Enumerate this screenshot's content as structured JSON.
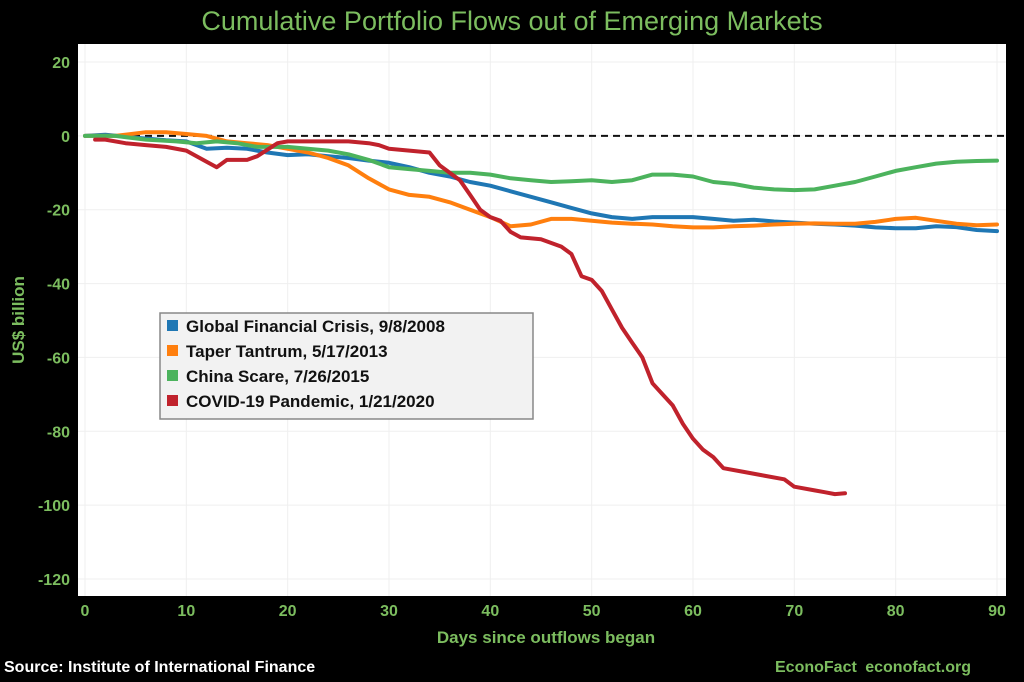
{
  "chart_data": {
    "type": "line",
    "title": "Cumulative Portfolio Flows out of Emerging Markets",
    "xlabel": "Days since outflows began",
    "ylabel": "US$ billion",
    "xlim": [
      0,
      90
    ],
    "ylim": [
      -120,
      20
    ],
    "x_ticks": [
      0,
      10,
      20,
      30,
      40,
      50,
      60,
      70,
      80,
      90
    ],
    "y_ticks": [
      20,
      0,
      -20,
      -40,
      -60,
      -80,
      -100,
      -120
    ],
    "grid": true,
    "reference_line_y": 0,
    "legend_position": "left-center",
    "series": [
      {
        "name": "Global Financial Crisis, 9/8/2008",
        "color": "#1f77b4",
        "points": [
          [
            0,
            0
          ],
          [
            2,
            0.3
          ],
          [
            5,
            -0.5
          ],
          [
            8,
            -1.2
          ],
          [
            10,
            -1.5
          ],
          [
            12,
            -3.5
          ],
          [
            14,
            -3.2
          ],
          [
            16,
            -3.5
          ],
          [
            18,
            -4.5
          ],
          [
            20,
            -5.2
          ],
          [
            22,
            -5
          ],
          [
            24,
            -5.5
          ],
          [
            26,
            -6
          ],
          [
            28,
            -6.7
          ],
          [
            30,
            -7.3
          ],
          [
            32,
            -8.5
          ],
          [
            34,
            -10
          ],
          [
            36,
            -11
          ],
          [
            38,
            -12.5
          ],
          [
            40,
            -13.5
          ],
          [
            42,
            -15
          ],
          [
            44,
            -16.5
          ],
          [
            46,
            -18
          ],
          [
            48,
            -19.5
          ],
          [
            50,
            -21
          ],
          [
            52,
            -22
          ],
          [
            54,
            -22.5
          ],
          [
            56,
            -22
          ],
          [
            58,
            -22
          ],
          [
            60,
            -22
          ],
          [
            62,
            -22.5
          ],
          [
            64,
            -23
          ],
          [
            66,
            -22.7
          ],
          [
            68,
            -23.2
          ],
          [
            70,
            -23.5
          ],
          [
            72,
            -23.8
          ],
          [
            74,
            -24
          ],
          [
            76,
            -24.3
          ],
          [
            78,
            -24.8
          ],
          [
            80,
            -25
          ],
          [
            82,
            -25
          ],
          [
            84,
            -24.5
          ],
          [
            86,
            -24.7
          ],
          [
            88,
            -25.5
          ],
          [
            90,
            -25.8
          ]
        ]
      },
      {
        "name": "Taper Tantrum, 5/17/2013",
        "color": "#ff7f0e",
        "points": [
          [
            0,
            0
          ],
          [
            3,
            0
          ],
          [
            6,
            1
          ],
          [
            8,
            1
          ],
          [
            10,
            0.5
          ],
          [
            12,
            0
          ],
          [
            14,
            -1.5
          ],
          [
            16,
            -2
          ],
          [
            18,
            -2.5
          ],
          [
            20,
            -3.5
          ],
          [
            22,
            -4.5
          ],
          [
            24,
            -6
          ],
          [
            26,
            -8
          ],
          [
            28,
            -11.5
          ],
          [
            30,
            -14.5
          ],
          [
            32,
            -16
          ],
          [
            34,
            -16.5
          ],
          [
            36,
            -18
          ],
          [
            38,
            -20
          ],
          [
            40,
            -22
          ],
          [
            42,
            -24.5
          ],
          [
            44,
            -24
          ],
          [
            46,
            -22.5
          ],
          [
            48,
            -22.5
          ],
          [
            50,
            -23
          ],
          [
            52,
            -23.5
          ],
          [
            54,
            -23.8
          ],
          [
            56,
            -24
          ],
          [
            58,
            -24.5
          ],
          [
            60,
            -24.8
          ],
          [
            62,
            -24.8
          ],
          [
            64,
            -24.5
          ],
          [
            66,
            -24.3
          ],
          [
            68,
            -24
          ],
          [
            70,
            -23.8
          ],
          [
            72,
            -23.7
          ],
          [
            74,
            -23.8
          ],
          [
            76,
            -23.8
          ],
          [
            78,
            -23.3
          ],
          [
            80,
            -22.5
          ],
          [
            82,
            -22.2
          ],
          [
            84,
            -23
          ],
          [
            86,
            -23.8
          ],
          [
            88,
            -24.2
          ],
          [
            90,
            -24
          ]
        ]
      },
      {
        "name": "China Scare, 7/26/2015",
        "color": "#4cb35d",
        "points": [
          [
            0,
            0
          ],
          [
            3,
            0
          ],
          [
            6,
            -1
          ],
          [
            9,
            -1.5
          ],
          [
            11,
            -2
          ],
          [
            13,
            -1.5
          ],
          [
            15,
            -2
          ],
          [
            17,
            -3
          ],
          [
            20,
            -3
          ],
          [
            22,
            -3.5
          ],
          [
            24,
            -4
          ],
          [
            26,
            -5
          ],
          [
            28,
            -6.5
          ],
          [
            30,
            -8.5
          ],
          [
            32,
            -9
          ],
          [
            34,
            -9.5
          ],
          [
            36,
            -10
          ],
          [
            38,
            -10
          ],
          [
            40,
            -10.5
          ],
          [
            42,
            -11.5
          ],
          [
            44,
            -12
          ],
          [
            46,
            -12.5
          ],
          [
            48,
            -12.3
          ],
          [
            50,
            -12
          ],
          [
            52,
            -12.5
          ],
          [
            54,
            -12
          ],
          [
            56,
            -10.5
          ],
          [
            58,
            -10.5
          ],
          [
            60,
            -11
          ],
          [
            62,
            -12.5
          ],
          [
            64,
            -13
          ],
          [
            66,
            -14
          ],
          [
            68,
            -14.5
          ],
          [
            70,
            -14.7
          ],
          [
            72,
            -14.5
          ],
          [
            74,
            -13.5
          ],
          [
            76,
            -12.5
          ],
          [
            78,
            -11
          ],
          [
            80,
            -9.5
          ],
          [
            82,
            -8.5
          ],
          [
            84,
            -7.5
          ],
          [
            86,
            -7
          ],
          [
            88,
            -6.8
          ],
          [
            90,
            -6.7
          ]
        ]
      },
      {
        "name": "COVID-19 Pandemic, 1/21/2020",
        "color": "#c0222c",
        "points": [
          [
            1,
            -1
          ],
          [
            2,
            -1
          ],
          [
            4,
            -2
          ],
          [
            6,
            -2.5
          ],
          [
            8,
            -3
          ],
          [
            10,
            -4
          ],
          [
            12,
            -7
          ],
          [
            13,
            -8.5
          ],
          [
            14,
            -6.5
          ],
          [
            16,
            -6.5
          ],
          [
            17,
            -5.5
          ],
          [
            19,
            -2
          ],
          [
            20,
            -1.5
          ],
          [
            22,
            -1.5
          ],
          [
            24,
            -1.5
          ],
          [
            26,
            -1.5
          ],
          [
            28,
            -2
          ],
          [
            29,
            -2.5
          ],
          [
            30,
            -3.5
          ],
          [
            32,
            -4
          ],
          [
            34,
            -4.5
          ],
          [
            35,
            -8
          ],
          [
            37,
            -12
          ],
          [
            38,
            -16
          ],
          [
            39,
            -20
          ],
          [
            40,
            -22
          ],
          [
            41,
            -23
          ],
          [
            42,
            -26
          ],
          [
            43,
            -27.5
          ],
          [
            45,
            -28
          ],
          [
            47,
            -30
          ],
          [
            48,
            -32
          ],
          [
            49,
            -38
          ],
          [
            50,
            -39
          ],
          [
            51,
            -42
          ],
          [
            52,
            -47
          ],
          [
            53,
            -52
          ],
          [
            54,
            -56
          ],
          [
            55,
            -60
          ],
          [
            56,
            -67
          ],
          [
            57,
            -70
          ],
          [
            58,
            -73
          ],
          [
            59,
            -78
          ],
          [
            60,
            -82
          ],
          [
            61,
            -85
          ],
          [
            62,
            -87
          ],
          [
            63,
            -90
          ],
          [
            65,
            -91
          ],
          [
            67,
            -92
          ],
          [
            69,
            -93
          ],
          [
            70,
            -95
          ],
          [
            72,
            -96
          ],
          [
            73,
            -96.5
          ],
          [
            74,
            -97
          ],
          [
            75,
            -96.8
          ]
        ]
      }
    ]
  },
  "footer": {
    "source": "Source: Institute of International Finance",
    "brand": "EconoFact econofact.org"
  },
  "colors": {
    "background": "#000000",
    "plot_background": "#ffffff",
    "accent_green": "#7cbd5f",
    "zero_line": "#111111",
    "legend_box": "#f2f2f2"
  }
}
